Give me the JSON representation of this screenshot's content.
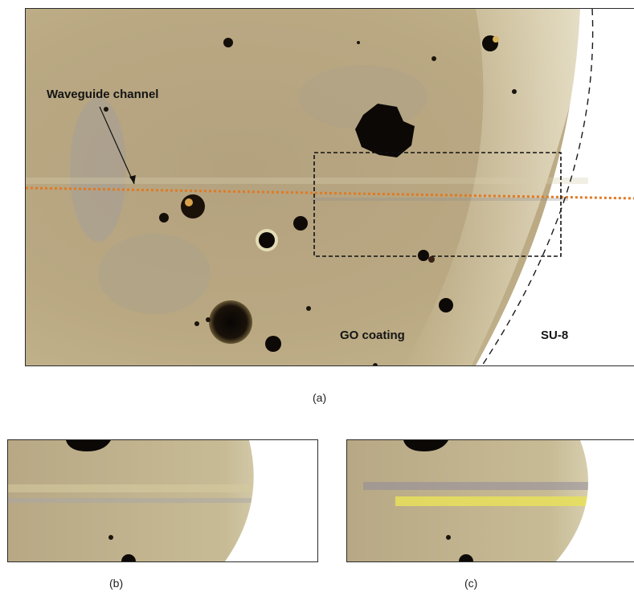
{
  "figure": {
    "panel_a": {
      "caption": "(a)",
      "labels": {
        "waveguide": "Waveguide channel",
        "go_coating": "GO coating",
        "su8": "SU-8"
      }
    },
    "panel_b": {
      "caption": "(b)"
    },
    "panel_c": {
      "caption": "(c)"
    }
  },
  "colors": {
    "go_film": "#b5a17e",
    "su8_region": "#ffffff",
    "guide_line": "#e07a24",
    "defects": "#0a0705"
  }
}
